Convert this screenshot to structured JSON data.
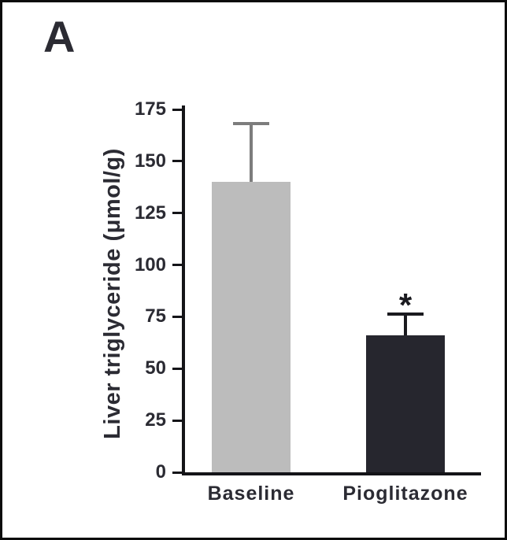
{
  "panel": {
    "label": "A"
  },
  "chart_data": {
    "type": "bar",
    "title": "",
    "categories": [
      "Baseline",
      "Pioglitazone"
    ],
    "values": [
      140,
      66
    ],
    "errors_up": [
      29,
      11
    ],
    "annotations": [
      {
        "category": "Pioglitazone",
        "text": "*"
      }
    ],
    "ylabel": "Liver triglyceride (μmol/g)",
    "xlabel": "",
    "ylim": [
      0,
      175
    ],
    "yticks": [
      0,
      25,
      50,
      75,
      100,
      125,
      150,
      175
    ],
    "grid": false,
    "legend": false,
    "bar_colors": [
      "#bcbcbc",
      "#26262e"
    ],
    "error_bar_colors": [
      "#7d7d7d",
      "#1a1a1f"
    ],
    "text_color": "#2b2b33",
    "axis_color": "#141418"
  }
}
